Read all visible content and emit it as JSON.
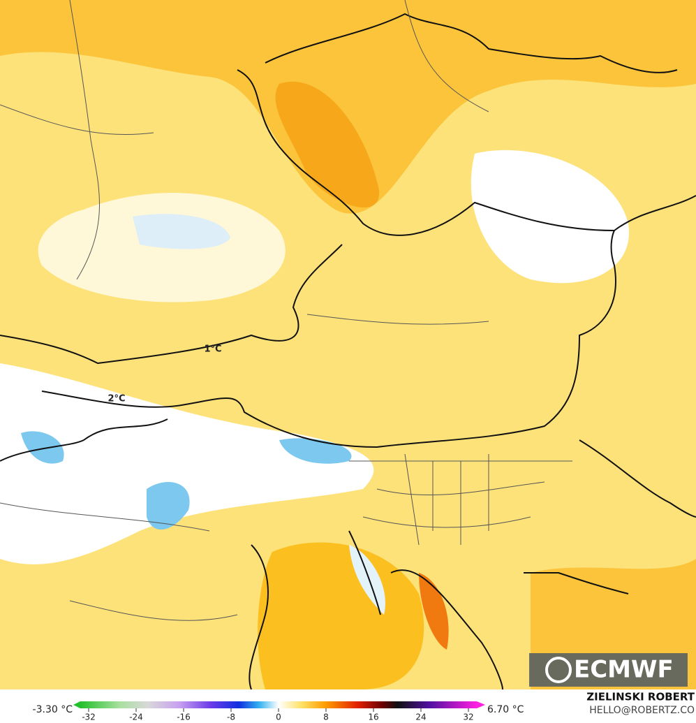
{
  "map": {
    "labels": [
      "1°C",
      "2°C"
    ]
  },
  "legend": {
    "min_label": "-3.30 °C",
    "max_label": "6.70 °C",
    "ticks": [
      -32,
      -24,
      -16,
      -8,
      0,
      8,
      16,
      24,
      32
    ]
  },
  "credit": {
    "name": "ZIELINSKI ROBERT",
    "email": "HELLO@ROBERTZ.CO"
  },
  "logo": "ECMWF"
}
